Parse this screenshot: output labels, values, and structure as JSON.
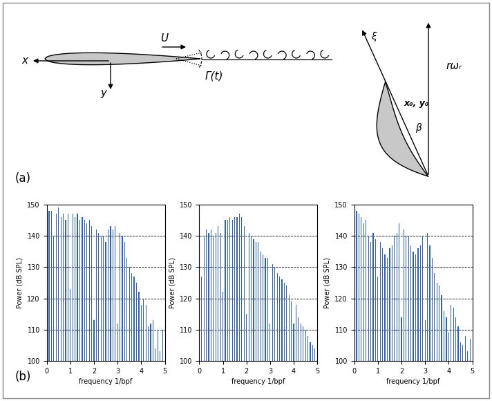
{
  "diagram": {
    "freestream": "U",
    "x_axis": "x",
    "y_axis": "y",
    "circulation": "Γ(t)",
    "blade_speed": "rωᵣ",
    "chord_axis": "ξ",
    "origin": "x₀, y₀",
    "angle": "β",
    "panel_a": "(a)",
    "panel_b": "(b)"
  },
  "chart_data": [
    {
      "type": "bar",
      "xlabel": "frequency 1/bpf",
      "ylabel": "Power (dB SPL)",
      "color": "#2f5fbf",
      "x": [
        0.1,
        0.2,
        0.3,
        0.4,
        0.5,
        0.6,
        0.7,
        0.8,
        0.9,
        1.0,
        1.1,
        1.2,
        1.3,
        1.4,
        1.5,
        1.6,
        1.7,
        1.8,
        1.9,
        2.0,
        2.1,
        2.2,
        2.3,
        2.4,
        2.5,
        2.6,
        2.7,
        2.8,
        2.9,
        3.0,
        3.1,
        3.2,
        3.3,
        3.4,
        3.5,
        3.6,
        3.7,
        3.8,
        3.9,
        4.0,
        4.1,
        4.2,
        4.3,
        4.4,
        4.5,
        4.6,
        4.7,
        4.8,
        4.9
      ],
      "values": [
        148,
        148,
        140,
        147,
        149,
        146,
        147,
        145,
        147,
        123,
        147,
        146,
        147,
        145,
        146,
        145,
        144,
        145,
        143,
        113,
        142,
        141,
        140,
        140,
        138,
        142,
        143,
        142,
        143,
        112,
        141,
        140,
        138,
        133,
        130,
        128,
        127,
        125,
        122,
        118,
        120,
        118,
        111,
        112,
        113,
        104,
        110,
        103,
        110
      ],
      "xlim": [
        0,
        5
      ],
      "ylim": [
        100,
        150
      ],
      "xticks": [
        0,
        1,
        2,
        3,
        4,
        5
      ],
      "yticks": [
        100,
        110,
        120,
        130,
        140,
        150
      ],
      "grid": true
    },
    {
      "type": "bar",
      "xlabel": "frequency 1/bpf",
      "ylabel": "Power (dB SPL)",
      "color": "#2f5fbf",
      "x": [
        0.1,
        0.2,
        0.3,
        0.4,
        0.5,
        0.6,
        0.7,
        0.8,
        0.9,
        1.0,
        1.1,
        1.2,
        1.3,
        1.4,
        1.5,
        1.6,
        1.7,
        1.8,
        1.9,
        2.0,
        2.1,
        2.2,
        2.3,
        2.4,
        2.5,
        2.6,
        2.7,
        2.8,
        2.9,
        3.0,
        3.1,
        3.2,
        3.3,
        3.4,
        3.5,
        3.6,
        3.7,
        3.8,
        3.9,
        4.0,
        4.1,
        4.2,
        4.3,
        4.4,
        4.5,
        4.6,
        4.7,
        4.8,
        4.9
      ],
      "values": [
        127,
        140,
        142,
        141,
        142,
        140,
        141,
        143,
        141,
        122,
        145,
        145,
        146,
        145,
        146,
        146,
        147,
        146,
        143,
        115,
        141,
        140,
        139,
        138,
        138,
        135,
        134,
        133,
        133,
        112,
        131,
        130,
        128,
        127,
        126,
        125,
        124,
        121,
        119,
        112,
        118,
        114,
        112,
        111,
        110,
        108,
        106,
        105,
        104
      ],
      "xlim": [
        0,
        5
      ],
      "ylim": [
        100,
        150
      ],
      "xticks": [
        0,
        1,
        2,
        3,
        4,
        5
      ],
      "yticks": [
        100,
        110,
        120,
        130,
        140,
        150
      ],
      "grid": true
    },
    {
      "type": "bar",
      "xlabel": "frequency 1/bpf",
      "ylabel": "Power (dB SPL)",
      "color": "#2f5fbf",
      "x": [
        0.1,
        0.2,
        0.3,
        0.4,
        0.5,
        0.6,
        0.7,
        0.8,
        0.9,
        1.0,
        1.1,
        1.2,
        1.3,
        1.4,
        1.5,
        1.6,
        1.7,
        1.8,
        1.9,
        2.0,
        2.1,
        2.2,
        2.3,
        2.4,
        2.5,
        2.6,
        2.7,
        2.8,
        2.9,
        3.0,
        3.1,
        3.2,
        3.3,
        3.4,
        3.5,
        3.6,
        3.7,
        3.8,
        3.9,
        4.0,
        4.1,
        4.2,
        4.3,
        4.4,
        4.5,
        4.6,
        4.7,
        4.8,
        4.9
      ],
      "values": [
        148,
        147,
        146,
        144,
        145,
        140,
        138,
        141,
        139,
        127,
        138,
        136,
        134,
        133,
        136,
        137,
        140,
        141,
        144,
        114,
        142,
        140,
        140,
        137,
        135,
        134,
        136,
        137,
        140,
        113,
        141,
        137,
        133,
        128,
        125,
        124,
        121,
        116,
        114,
        109,
        118,
        117,
        114,
        111,
        106,
        105,
        108,
        103,
        107
      ],
      "xlim": [
        0,
        5
      ],
      "ylim": [
        100,
        150
      ],
      "xticks": [
        0,
        1,
        2,
        3,
        4,
        5
      ],
      "yticks": [
        100,
        110,
        120,
        130,
        140,
        150
      ],
      "grid": true
    }
  ]
}
